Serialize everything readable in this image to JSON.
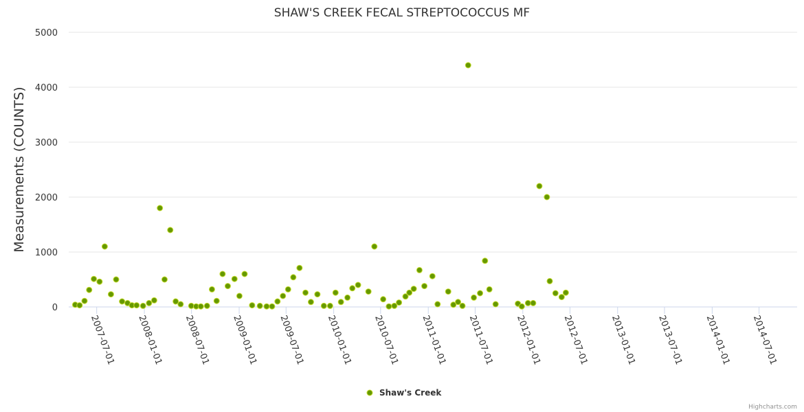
{
  "chart_data": {
    "type": "scatter",
    "title": "SHAW'S CREEK FECAL STREPTOCOCCUS MF",
    "ylabel": "Measurements (COUNTS)",
    "xlabel": "",
    "ylim": [
      0,
      5000
    ],
    "yticks": [
      0,
      1000,
      2000,
      3000,
      4000,
      5000
    ],
    "xlim": [
      "2007-03-15",
      "2014-11-25"
    ],
    "xticks": [
      "2007-07-01",
      "2008-01-01",
      "2008-07-01",
      "2009-01-01",
      "2009-07-01",
      "2010-01-01",
      "2010-07-01",
      "2011-01-01",
      "2011-07-01",
      "2012-01-01",
      "2012-07-01",
      "2013-01-01",
      "2013-07-01",
      "2014-01-01",
      "2014-07-01"
    ],
    "grid": true,
    "legend": "bottom-center",
    "series": [
      {
        "name": "Shaw's Creek",
        "color": "#669900",
        "points": [
          [
            "2007-04-09",
            40
          ],
          [
            "2007-04-26",
            30
          ],
          [
            "2007-05-15",
            110
          ],
          [
            "2007-06-02",
            310
          ],
          [
            "2007-06-20",
            510
          ],
          [
            "2007-07-12",
            460
          ],
          [
            "2007-08-01",
            1100
          ],
          [
            "2007-08-25",
            230
          ],
          [
            "2007-09-14",
            500
          ],
          [
            "2007-10-07",
            100
          ],
          [
            "2007-10-28",
            70
          ],
          [
            "2007-11-14",
            30
          ],
          [
            "2007-12-02",
            30
          ],
          [
            "2007-12-27",
            20
          ],
          [
            "2008-01-19",
            70
          ],
          [
            "2008-02-08",
            120
          ],
          [
            "2008-03-01",
            1800
          ],
          [
            "2008-03-19",
            500
          ],
          [
            "2008-04-10",
            1400
          ],
          [
            "2008-05-01",
            100
          ],
          [
            "2008-05-20",
            50
          ],
          [
            "2008-06-30",
            20
          ],
          [
            "2008-07-19",
            10
          ],
          [
            "2008-08-06",
            10
          ],
          [
            "2008-08-30",
            20
          ],
          [
            "2008-09-18",
            320
          ],
          [
            "2008-10-06",
            110
          ],
          [
            "2008-10-29",
            600
          ],
          [
            "2008-11-18",
            380
          ],
          [
            "2008-12-14",
            510
          ],
          [
            "2009-01-02",
            200
          ],
          [
            "2009-01-22",
            600
          ],
          [
            "2009-02-20",
            30
          ],
          [
            "2009-03-22",
            20
          ],
          [
            "2009-04-17",
            10
          ],
          [
            "2009-05-08",
            10
          ],
          [
            "2009-05-29",
            100
          ],
          [
            "2009-06-19",
            200
          ],
          [
            "2009-07-09",
            320
          ],
          [
            "2009-07-29",
            540
          ],
          [
            "2009-08-22",
            710
          ],
          [
            "2009-09-14",
            260
          ],
          [
            "2009-10-05",
            90
          ],
          [
            "2009-10-30",
            230
          ],
          [
            "2009-11-24",
            20
          ],
          [
            "2009-12-18",
            20
          ],
          [
            "2010-01-08",
            260
          ],
          [
            "2010-01-29",
            90
          ],
          [
            "2010-02-23",
            170
          ],
          [
            "2010-03-14",
            340
          ],
          [
            "2010-04-05",
            400
          ],
          [
            "2010-05-15",
            280
          ],
          [
            "2010-06-07",
            1100
          ],
          [
            "2010-07-11",
            140
          ],
          [
            "2010-08-02",
            10
          ],
          [
            "2010-08-23",
            20
          ],
          [
            "2010-09-10",
            80
          ],
          [
            "2010-10-05",
            190
          ],
          [
            "2010-10-20",
            260
          ],
          [
            "2010-11-06",
            330
          ],
          [
            "2010-11-28",
            670
          ],
          [
            "2010-12-17",
            380
          ],
          [
            "2011-01-17",
            560
          ],
          [
            "2011-02-06",
            50
          ],
          [
            "2011-03-19",
            280
          ],
          [
            "2011-04-08",
            40
          ],
          [
            "2011-04-26",
            90
          ],
          [
            "2011-05-13",
            20
          ],
          [
            "2011-06-04",
            4400
          ],
          [
            "2011-06-26",
            170
          ],
          [
            "2011-07-20",
            250
          ],
          [
            "2011-08-08",
            840
          ],
          [
            "2011-08-25",
            320
          ],
          [
            "2011-09-18",
            50
          ],
          [
            "2011-12-13",
            60
          ],
          [
            "2011-12-28",
            10
          ],
          [
            "2012-01-21",
            70
          ],
          [
            "2012-02-10",
            70
          ],
          [
            "2012-03-05",
            2200
          ],
          [
            "2012-04-03",
            2000
          ],
          [
            "2012-04-14",
            470
          ],
          [
            "2012-05-06",
            250
          ],
          [
            "2012-05-30",
            180
          ],
          [
            "2012-06-15",
            260
          ]
        ]
      }
    ],
    "credits": "Highcharts.com"
  }
}
